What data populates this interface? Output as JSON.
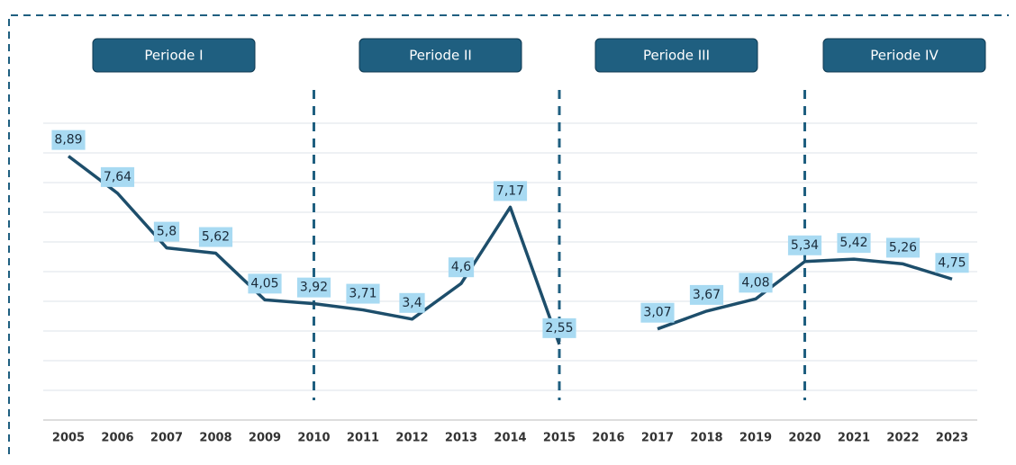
{
  "chart_data": {
    "type": "line",
    "categories": [
      "2005",
      "2006",
      "2007",
      "2008",
      "2009",
      "2010",
      "2011",
      "2012",
      "2013",
      "2014",
      "2015",
      "2016",
      "2017",
      "2018",
      "2019",
      "2020",
      "2021",
      "2022",
      "2023"
    ],
    "series": [
      {
        "color": "#1d4e6b",
        "values": [
          8.89,
          7.64,
          5.8,
          5.62,
          4.05,
          3.92,
          3.71,
          3.4,
          4.6,
          7.17,
          2.55,
          null,
          3.07,
          3.67,
          4.08,
          5.34,
          5.42,
          5.26,
          4.75
        ],
        "value_labels": [
          "8,89",
          "7,64",
          "5,8",
          "5,62",
          "4,05",
          "3,92",
          "3,71",
          "3,4",
          "4,6",
          "7,17",
          "2,55",
          null,
          "3,07",
          "3,67",
          "4,08",
          "5,34",
          "5,42",
          "5,26",
          "4,75"
        ]
      }
    ],
    "ylim": [
      0,
      10
    ],
    "yticks": [
      0,
      1,
      2,
      3,
      4,
      5,
      6,
      7,
      8,
      9,
      10
    ],
    "grid": true,
    "periods": [
      "Periode I",
      "Periode II",
      "Periode III",
      "Periode IV"
    ],
    "period_dividers": [
      "2010",
      "2015",
      "2020"
    ]
  }
}
